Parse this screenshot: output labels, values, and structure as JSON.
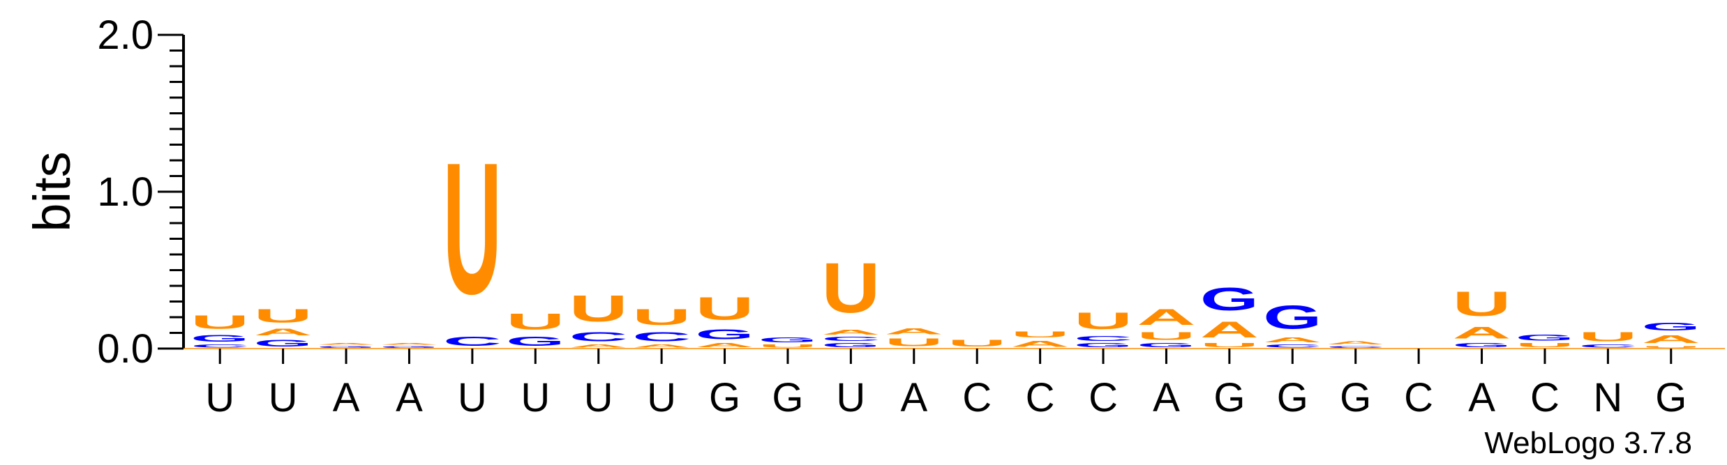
{
  "chart_data": {
    "type": "sequence-logo",
    "ylabel": "bits",
    "ylim": [
      0,
      2.0
    ],
    "yticks": [
      "0.0",
      "1.0",
      "2.0"
    ],
    "credit": "WebLogo 3.7.8",
    "colors": {
      "U": "#ff8c00",
      "A": "#ff8c00",
      "G": "#0000ff",
      "C": "#0000ff",
      "N": "#ff8c00"
    },
    "positions": [
      {
        "label": "U",
        "stack": [
          {
            "letter": "C",
            "bits": 0.03
          },
          {
            "letter": "G",
            "bits": 0.07
          },
          {
            "letter": "U",
            "bits": 0.14
          }
        ]
      },
      {
        "label": "U",
        "stack": [
          {
            "letter": "G",
            "bits": 0.07
          },
          {
            "letter": "A",
            "bits": 0.07
          },
          {
            "letter": "U",
            "bits": 0.14
          }
        ]
      },
      {
        "label": "A",
        "stack": [
          {
            "letter": "G",
            "bits": 0.02
          },
          {
            "letter": "A",
            "bits": 0.02
          }
        ]
      },
      {
        "label": "A",
        "stack": [
          {
            "letter": "G",
            "bits": 0.02
          },
          {
            "letter": "A",
            "bits": 0.02
          }
        ]
      },
      {
        "label": "U",
        "stack": [
          {
            "letter": "C",
            "bits": 0.09
          },
          {
            "letter": "U",
            "bits": 1.34
          }
        ]
      },
      {
        "label": "U",
        "stack": [
          {
            "letter": "G",
            "bits": 0.09
          },
          {
            "letter": "U",
            "bits": 0.16
          }
        ]
      },
      {
        "label": "U",
        "stack": [
          {
            "letter": "A",
            "bits": 0.03
          },
          {
            "letter": "C",
            "bits": 0.09
          },
          {
            "letter": "U",
            "bits": 0.27
          }
        ]
      },
      {
        "label": "U",
        "stack": [
          {
            "letter": "A",
            "bits": 0.03
          },
          {
            "letter": "C",
            "bits": 0.09
          },
          {
            "letter": "U",
            "bits": 0.16
          }
        ]
      },
      {
        "label": "G",
        "stack": [
          {
            "letter": "A",
            "bits": 0.04
          },
          {
            "letter": "G",
            "bits": 0.1
          },
          {
            "letter": "U",
            "bits": 0.23
          }
        ]
      },
      {
        "label": "G",
        "stack": [
          {
            "letter": "U",
            "bits": 0.03
          },
          {
            "letter": "G",
            "bits": 0.05
          }
        ]
      },
      {
        "label": "U",
        "stack": [
          {
            "letter": "G",
            "bits": 0.04
          },
          {
            "letter": "C",
            "bits": 0.04
          },
          {
            "letter": "A",
            "bits": 0.05
          },
          {
            "letter": "U",
            "bits": 0.51
          }
        ]
      },
      {
        "label": "A",
        "stack": [
          {
            "letter": "U",
            "bits": 0.08
          },
          {
            "letter": "A",
            "bits": 0.06
          }
        ]
      },
      {
        "label": "C",
        "stack": [
          {
            "letter": "U",
            "bits": 0.07
          }
        ]
      },
      {
        "label": "C",
        "stack": [
          {
            "letter": "A",
            "bits": 0.06
          },
          {
            "letter": "U",
            "bits": 0.06
          }
        ]
      },
      {
        "label": "C",
        "stack": [
          {
            "letter": "G",
            "bits": 0.04
          },
          {
            "letter": "C",
            "bits": 0.05
          },
          {
            "letter": "U",
            "bits": 0.17
          }
        ]
      },
      {
        "label": "A",
        "stack": [
          {
            "letter": "G",
            "bits": 0.04
          },
          {
            "letter": "U",
            "bits": 0.08
          },
          {
            "letter": "A",
            "bits": 0.16
          }
        ]
      },
      {
        "label": "G",
        "stack": [
          {
            "letter": "U",
            "bits": 0.04
          },
          {
            "letter": "A",
            "bits": 0.16
          },
          {
            "letter": "G",
            "bits": 0.23
          }
        ]
      },
      {
        "label": "G",
        "stack": [
          {
            "letter": "C",
            "bits": 0.03
          },
          {
            "letter": "A",
            "bits": 0.05
          },
          {
            "letter": "G",
            "bits": 0.24
          }
        ]
      },
      {
        "label": "G",
        "stack": [
          {
            "letter": "C",
            "bits": 0.02
          },
          {
            "letter": "A",
            "bits": 0.03
          }
        ]
      },
      {
        "label": "C",
        "stack": []
      },
      {
        "label": "A",
        "stack": [
          {
            "letter": "G",
            "bits": 0.04
          },
          {
            "letter": "A",
            "bits": 0.12
          },
          {
            "letter": "U",
            "bits": 0.25
          }
        ]
      },
      {
        "label": "C",
        "stack": [
          {
            "letter": "U",
            "bits": 0.04
          },
          {
            "letter": "G",
            "bits": 0.06
          }
        ]
      },
      {
        "label": "N",
        "stack": [
          {
            "letter": "C",
            "bits": 0.03
          },
          {
            "letter": "U",
            "bits": 0.09
          }
        ]
      },
      {
        "label": "G",
        "stack": [
          {
            "letter": "U",
            "bits": 0.02
          },
          {
            "letter": "A",
            "bits": 0.08
          },
          {
            "letter": "G",
            "bits": 0.08
          }
        ]
      }
    ]
  }
}
